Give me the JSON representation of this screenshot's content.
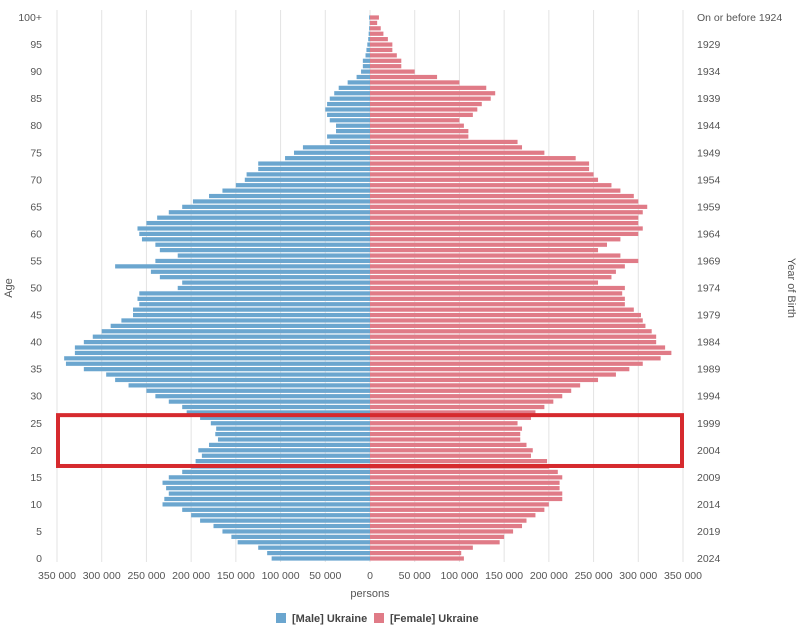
{
  "chart_data": {
    "type": "bar",
    "orientation": "horizontal-pyramid",
    "xlabel": "persons",
    "ylabel": "Age",
    "ylabel_right": "Year of Birth",
    "xlim": [
      -350000,
      350000
    ],
    "x_ticks": [
      -350000,
      -300000,
      -250000,
      -200000,
      -150000,
      -100000,
      -50000,
      0,
      50000,
      100000,
      150000,
      200000,
      250000,
      300000,
      350000
    ],
    "x_tick_labels": [
      "350 000",
      "300 000",
      "250 000",
      "200 000",
      "150 000",
      "100 000",
      "50 000",
      "0",
      "50 000",
      "100 000",
      "150 000",
      "200 000",
      "250 000",
      "300 000",
      "350 000"
    ],
    "age_tick_labels": [
      "0",
      "5",
      "10",
      "15",
      "20",
      "25",
      "30",
      "35",
      "40",
      "45",
      "50",
      "55",
      "60",
      "65",
      "70",
      "75",
      "80",
      "85",
      "90",
      "95",
      "100+"
    ],
    "birth_year_labels": [
      "2024",
      "2019",
      "2014",
      "2009",
      "2004",
      "1999",
      "1994",
      "1989",
      "1984",
      "1979",
      "1974",
      "1969",
      "1964",
      "1959",
      "1954",
      "1949",
      "1944",
      "1939",
      "1934",
      "1929",
      "On or before 1924"
    ],
    "grid": true,
    "legend_position": "bottom-center",
    "highlight": {
      "age_from": 18,
      "age_to": 25,
      "color": "#d62a2e"
    },
    "ages": [
      "0",
      "1",
      "2",
      "3",
      "4",
      "5",
      "6",
      "7",
      "8",
      "9",
      "10",
      "11",
      "12",
      "13",
      "14",
      "15",
      "16",
      "17",
      "18",
      "19",
      "20",
      "21",
      "22",
      "23",
      "24",
      "25",
      "26",
      "27",
      "28",
      "29",
      "30",
      "31",
      "32",
      "33",
      "34",
      "35",
      "36",
      "37",
      "38",
      "39",
      "40",
      "41",
      "42",
      "43",
      "44",
      "45",
      "46",
      "47",
      "48",
      "49",
      "50",
      "51",
      "52",
      "53",
      "54",
      "55",
      "56",
      "57",
      "58",
      "59",
      "60",
      "61",
      "62",
      "63",
      "64",
      "65",
      "66",
      "67",
      "68",
      "69",
      "70",
      "71",
      "72",
      "73",
      "74",
      "75",
      "76",
      "77",
      "78",
      "79",
      "80",
      "81",
      "82",
      "83",
      "84",
      "85",
      "86",
      "87",
      "88",
      "89",
      "90",
      "91",
      "92",
      "93",
      "94",
      "95",
      "96",
      "97",
      "98",
      "99",
      "100+"
    ],
    "series": [
      {
        "name": "[Male] Ukraine",
        "color": "#6ba6cf",
        "values": [
          110000,
          115000,
          125000,
          148000,
          155000,
          165000,
          175000,
          190000,
          200000,
          210000,
          232000,
          230000,
          225000,
          228000,
          232000,
          225000,
          210000,
          200000,
          195000,
          188000,
          192000,
          180000,
          170000,
          173000,
          172000,
          178000,
          190000,
          205000,
          210000,
          225000,
          240000,
          250000,
          270000,
          285000,
          295000,
          320000,
          340000,
          342000,
          330000,
          330000,
          320000,
          310000,
          300000,
          290000,
          278000,
          265000,
          265000,
          258000,
          260000,
          258000,
          215000,
          210000,
          235000,
          245000,
          285000,
          240000,
          215000,
          235000,
          240000,
          255000,
          258000,
          260000,
          250000,
          238000,
          225000,
          210000,
          198000,
          180000,
          165000,
          150000,
          140000,
          138000,
          125000,
          125000,
          95000,
          85000,
          75000,
          45000,
          48000,
          38000,
          38000,
          45000,
          48000,
          50000,
          48000,
          45000,
          40000,
          35000,
          25000,
          15000,
          10000,
          8000,
          8000,
          5000,
          4000,
          3000,
          2000,
          1500,
          1000,
          500,
          1000
        ]
      },
      {
        "name": "[Female] Ukraine",
        "color": "#e07b87",
        "values": [
          105000,
          102000,
          115000,
          145000,
          150000,
          160000,
          170000,
          175000,
          185000,
          195000,
          200000,
          215000,
          215000,
          212000,
          212000,
          215000,
          210000,
          200000,
          198000,
          180000,
          182000,
          175000,
          168000,
          168000,
          170000,
          165000,
          180000,
          185000,
          195000,
          205000,
          215000,
          225000,
          235000,
          255000,
          275000,
          290000,
          305000,
          325000,
          337000,
          330000,
          320000,
          320000,
          315000,
          308000,
          305000,
          303000,
          295000,
          285000,
          285000,
          282000,
          285000,
          255000,
          270000,
          275000,
          285000,
          300000,
          280000,
          255000,
          265000,
          280000,
          300000,
          305000,
          300000,
          300000,
          305000,
          310000,
          300000,
          295000,
          280000,
          270000,
          255000,
          250000,
          245000,
          245000,
          230000,
          195000,
          170000,
          165000,
          110000,
          110000,
          105000,
          100000,
          115000,
          120000,
          125000,
          135000,
          140000,
          130000,
          100000,
          75000,
          50000,
          35000,
          35000,
          30000,
          25000,
          25000,
          20000,
          15000,
          12000,
          8000,
          10000
        ]
      }
    ]
  }
}
